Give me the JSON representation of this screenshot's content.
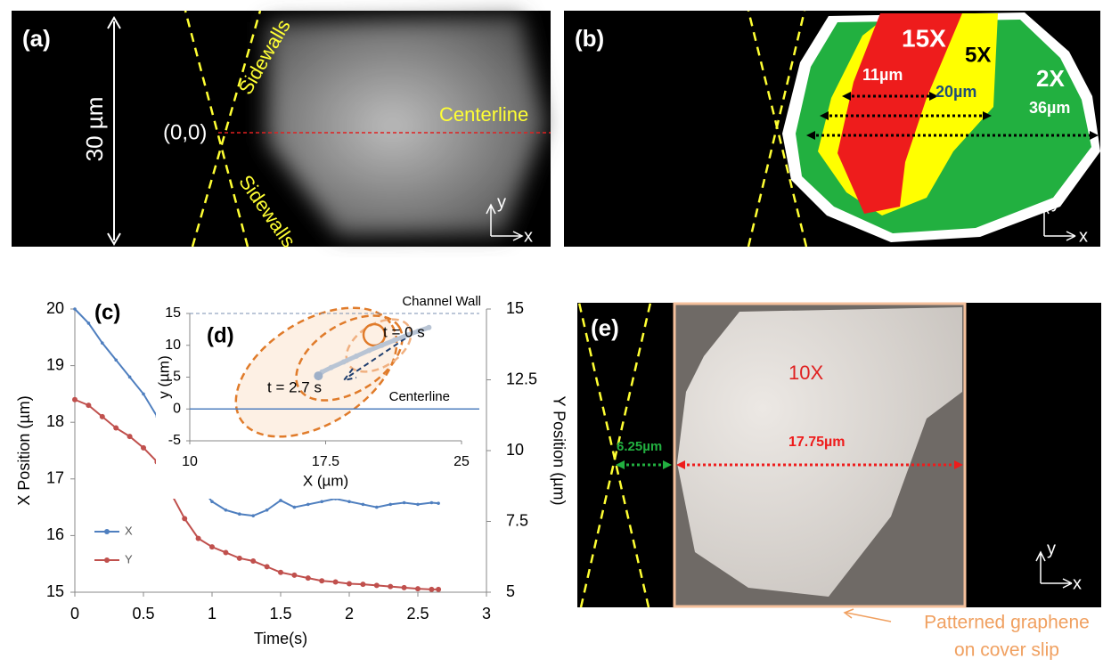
{
  "panel_a": {
    "label": "(a)",
    "scale": "30 µm",
    "origin": "(0,0)",
    "sidewall_top": "Sidewalls",
    "sidewall_bottom": "Sidewalls",
    "centerline": "Centerline",
    "axis_y": "y",
    "axis_x": "x"
  },
  "panel_b": {
    "label": "(b)",
    "zone_15x": "15X",
    "zone_5x": "5X",
    "zone_2x": "2X",
    "width_15x": "11µm",
    "width_5x": "20µm",
    "width_2x": "36µm",
    "axis_y": "y",
    "axis_x": "x"
  },
  "panel_e": {
    "label": "(e)",
    "zone": "10X",
    "gap": "6.25µm",
    "width": "17.75µm",
    "axis_y": "y",
    "axis_x": "x",
    "note_line1": "Patterned graphene",
    "note_line2": "on cover slip"
  },
  "chart_data": [
    {
      "type": "line",
      "panel_label": "(c)",
      "x_label": "Time(s)",
      "y_label": "X Position (µm)",
      "y2_label": "Y Position (µm)",
      "x": [
        0,
        0.1,
        0.2,
        0.3,
        0.4,
        0.5,
        0.6,
        0.7,
        0.8,
        0.9,
        1.0,
        1.1,
        1.2,
        1.3,
        1.4,
        1.5,
        1.6,
        1.7,
        1.8,
        1.9,
        2.0,
        2.1,
        2.2,
        2.3,
        2.4,
        2.5,
        2.6,
        2.65
      ],
      "series": [
        {
          "name": "X",
          "color": "#4f7fbf",
          "values": [
            20,
            19.75,
            19.4,
            19.1,
            18.8,
            18.5,
            18.1,
            17.7,
            17.3,
            16.9,
            16.6,
            16.45,
            16.38,
            16.35,
            16.45,
            16.62,
            16.5,
            16.55,
            16.6,
            16.65,
            16.6,
            16.55,
            16.5,
            16.55,
            16.58,
            16.55,
            16.58,
            16.57
          ]
        },
        {
          "name": "Y",
          "color": "#c0504d",
          "axis": "y2",
          "values": [
            11.8,
            11.6,
            11.2,
            10.8,
            10.5,
            10.1,
            9.6,
            8.5,
            7.6,
            6.9,
            6.6,
            6.4,
            6.2,
            6.1,
            5.9,
            5.7,
            5.6,
            5.5,
            5.4,
            5.36,
            5.3,
            5.28,
            5.24,
            5.2,
            5.16,
            5.12,
            5.1,
            5.1
          ]
        }
      ],
      "xlim": [
        0,
        3
      ],
      "xticks": [
        0,
        0.5,
        1,
        1.5,
        2,
        2.5,
        3
      ],
      "ylim": [
        15,
        20
      ],
      "yticks": [
        15,
        16,
        17,
        18,
        19,
        20
      ],
      "y2lim": [
        5,
        15
      ],
      "y2ticks": [
        5,
        7.5,
        10,
        12.5,
        15
      ],
      "legend": "lower left"
    },
    {
      "type": "line",
      "panel_label": "(d)",
      "x_label": "X (µm)",
      "y_label": "y (µm)",
      "x": [
        23.2,
        22.6,
        22,
        21.3,
        20.6,
        19.9,
        19.2,
        18.5,
        17.8,
        17.3,
        17.1
      ],
      "series": [
        {
          "name": "trajectory",
          "color": "#b8c4d4",
          "values": [
            12.8,
            12.2,
            11.6,
            10.8,
            10,
            9.2,
            8.3,
            7.4,
            6.5,
            5.8,
            5.2
          ]
        }
      ],
      "xlim": [
        10,
        25
      ],
      "xticks": [
        10,
        17.5,
        25
      ],
      "ylim": [
        -5,
        15
      ],
      "yticks": [
        -5,
        0,
        5,
        10,
        15
      ],
      "reference_lines": [
        {
          "y": 0,
          "label": "Centerline"
        },
        {
          "y": 15,
          "label": "Channel Wall"
        }
      ],
      "annotations": [
        "t = 0 s",
        "t = 2.7 s"
      ]
    }
  ]
}
